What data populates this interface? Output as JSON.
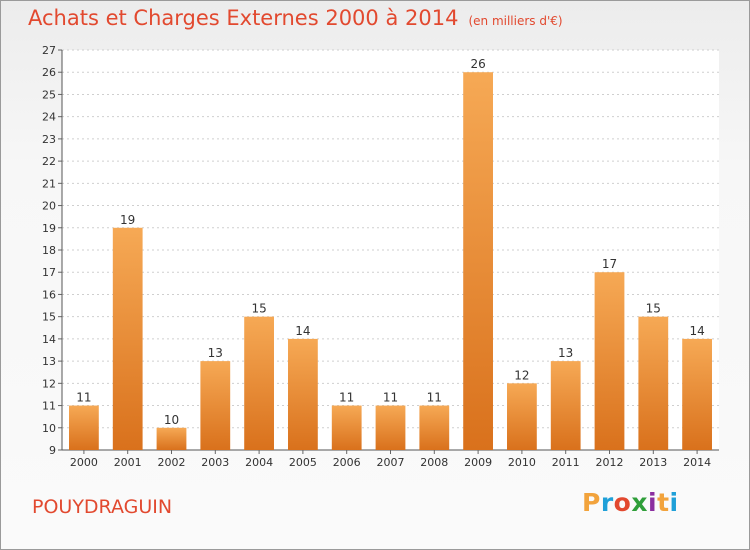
{
  "title": "Achats et Charges Externes 2000 à 2014",
  "unit": "(en milliers d'€)",
  "commune": "POUYDRAGUIN",
  "logo": {
    "text": "Proxiti",
    "colors": [
      "#f2a33c",
      "#1fa0d8",
      "#e2492f",
      "#2f9f3a",
      "#8b2ea0",
      "#f2a33c",
      "#1fa0d8"
    ]
  },
  "colors": {
    "accent": "#e2492f",
    "bar_light": "#f6a955",
    "bar_dark": "#d9711c"
  },
  "chart_data": {
    "type": "bar",
    "categories": [
      "2000",
      "2001",
      "2002",
      "2003",
      "2004",
      "2005",
      "2006",
      "2007",
      "2008",
      "2009",
      "2010",
      "2011",
      "2012",
      "2013",
      "2014"
    ],
    "values": [
      11,
      19,
      10,
      13,
      15,
      14,
      11,
      11,
      11,
      26,
      12,
      13,
      17,
      15,
      14
    ],
    "ylim": [
      9,
      27
    ],
    "yticks": [
      9,
      10,
      11,
      12,
      13,
      14,
      15,
      16,
      17,
      18,
      19,
      20,
      21,
      22,
      23,
      24,
      25,
      26,
      27
    ],
    "xlabel": "",
    "ylabel": "",
    "grid": true
  }
}
